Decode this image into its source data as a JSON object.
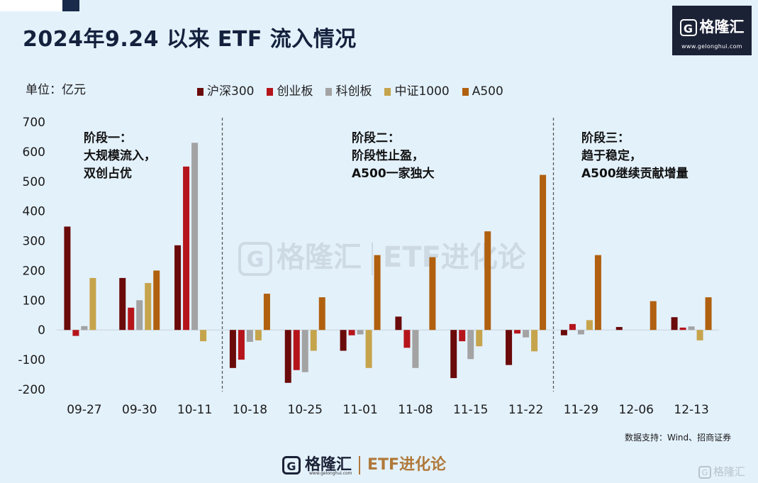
{
  "header": {
    "title": "2024年9.24 以来 ETF 流入情况"
  },
  "brand": {
    "name": "格隆汇",
    "logo_letter": "G",
    "url": "www.gelonghui.com"
  },
  "unit_label": "单位：亿元",
  "source_note": "数据支持：Wind、招商证券",
  "footer": {
    "brand_name": "格隆汇",
    "brand_url": "www.gelonghui.com",
    "column_name": "ETF进化论"
  },
  "watermark": {
    "center_brand": "格隆汇",
    "center_url": "www.gelonghui.com",
    "center_column": "ETF进化论",
    "corner_text": "格隆汇"
  },
  "chart_data": {
    "type": "bar",
    "title": "2024年9.24 以来 ETF 流入情况",
    "ylabel": "单位：亿元",
    "xlabel": "",
    "ylim": [
      -200,
      700
    ],
    "yticks": [
      -200,
      -100,
      0,
      100,
      200,
      300,
      400,
      500,
      600,
      700
    ],
    "grid": false,
    "legend_position": "top",
    "categories": [
      "09-27",
      "09-30",
      "10-11",
      "10-18",
      "10-25",
      "11-01",
      "11-08",
      "11-15",
      "11-22",
      "11-29",
      "12-06",
      "12-13"
    ],
    "series": [
      {
        "name": "沪深300",
        "color": "#6b0a0a",
        "values": [
          348,
          175,
          285,
          -128,
          -178,
          -70,
          45,
          -162,
          -118,
          -18,
          10,
          43
        ]
      },
      {
        "name": "创业板",
        "color": "#b5141b",
        "values": [
          -20,
          75,
          550,
          -100,
          -135,
          -18,
          -60,
          -38,
          -12,
          20,
          0,
          8
        ]
      },
      {
        "name": "科创板",
        "color": "#a3a3a3",
        "values": [
          13,
          100,
          630,
          -40,
          -142,
          -15,
          -128,
          -98,
          -25,
          -15,
          0,
          12
        ]
      },
      {
        "name": "中证1000",
        "color": "#c6a44c",
        "values": [
          175,
          158,
          -38,
          -35,
          -70,
          -128,
          0,
          -55,
          -72,
          33,
          0,
          -35
        ]
      },
      {
        "name": "A500",
        "color": "#b0600f",
        "values": [
          0,
          200,
          0,
          122,
          110,
          252,
          245,
          332,
          522,
          252,
          97,
          110
        ]
      }
    ],
    "phase_dividers_after": [
      "10-11",
      "11-22"
    ],
    "annotations": [
      {
        "lines": [
          "阶段一：",
          "大规模流入，",
          "双创占优"
        ]
      },
      {
        "lines": [
          "阶段二：",
          "阶段性止盈，",
          "A500一家独大"
        ]
      },
      {
        "lines": [
          "阶段三：",
          "趋于稳定，",
          "A500继续贡献增量"
        ]
      }
    ]
  }
}
